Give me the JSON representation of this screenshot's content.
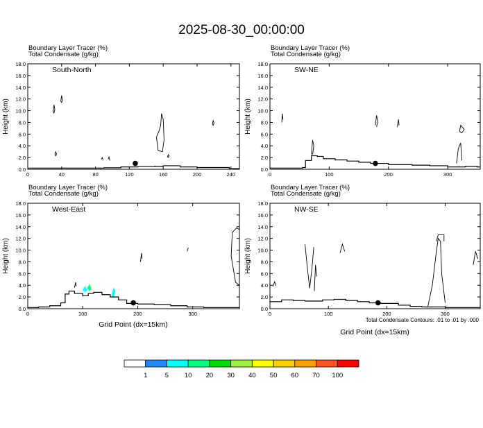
{
  "title": "2025-08-30_00:00:00",
  "panel_header": {
    "line1": "Boundary Layer Tracer   (%)",
    "line2": "Total Condensate   (g/kg)"
  },
  "footnote": "Total Condensate Contours: .01 to .01 by .000",
  "xlabel": "Grid Point (dx=15km)",
  "ylabel": "Height (km)",
  "colorbar": {
    "colors": [
      "#ffffff",
      "#1e8cff",
      "#00ffff",
      "#00ff80",
      "#00e000",
      "#a0f040",
      "#ffff00",
      "#ffd000",
      "#ffa000",
      "#ff5020",
      "#ff0000"
    ],
    "labels": [
      "1",
      "5",
      "10",
      "20",
      "30",
      "40",
      "50",
      "60",
      "70",
      "100"
    ]
  },
  "chart_data": [
    {
      "type": "contour-cross-section",
      "name": "South-North",
      "x_ticks": [
        0,
        40,
        80,
        120,
        160,
        200,
        240
      ],
      "xlim": [
        0,
        250
      ],
      "y_ticks": [
        "0.0",
        "2.0",
        "4.0",
        "6.0",
        "8.0",
        "10.0",
        "12.0",
        "14.0",
        "16.0",
        "18.0"
      ],
      "ylim": [
        0,
        18
      ],
      "marker": {
        "x": 127,
        "y": 1.0
      },
      "terrain": [
        [
          0,
          0.2
        ],
        [
          20,
          0.2
        ],
        [
          60,
          0.2
        ],
        [
          90,
          0.25
        ],
        [
          110,
          0.4
        ],
        [
          130,
          0.45
        ],
        [
          150,
          0.5
        ],
        [
          160,
          0.6
        ],
        [
          180,
          0.4
        ],
        [
          200,
          0.3
        ],
        [
          225,
          0.3
        ],
        [
          238,
          0.1
        ],
        [
          250,
          0.1
        ]
      ],
      "condensate_contours": [
        [
          [
            152,
            5.5
          ],
          [
            154,
            3.2
          ],
          [
            159,
            3.0
          ],
          [
            161,
            5.0
          ],
          [
            160,
            8.5
          ],
          [
            158,
            9.5
          ],
          [
            157,
            7.5
          ],
          [
            155,
            6.5
          ],
          [
            152,
            5.5
          ]
        ],
        [
          [
            30,
            9.8
          ],
          [
            31,
            11.0
          ],
          [
            32,
            10.2
          ],
          [
            31,
            9.6
          ],
          [
            30,
            9.8
          ]
        ],
        [
          [
            39,
            11.6
          ],
          [
            40,
            12.6
          ],
          [
            41,
            11.8
          ],
          [
            40,
            11.4
          ],
          [
            39,
            11.6
          ]
        ],
        [
          [
            32,
            2.5
          ],
          [
            33,
            3.0
          ],
          [
            34,
            2.6
          ],
          [
            33,
            2.3
          ],
          [
            32,
            2.5
          ]
        ],
        [
          [
            87,
            1.7
          ],
          [
            88,
            2.0
          ],
          [
            89,
            1.6
          ]
        ],
        [
          [
            95,
            1.7
          ],
          [
            96,
            2.1
          ],
          [
            97,
            1.5
          ]
        ],
        [
          [
            218,
            7.7
          ],
          [
            219,
            8.3
          ],
          [
            220,
            7.9
          ],
          [
            219,
            7.5
          ],
          [
            218,
            7.7
          ]
        ],
        [
          [
            165,
            2.1
          ],
          [
            166,
            2.5
          ],
          [
            167,
            2.3
          ],
          [
            166,
            2.0
          ],
          [
            165,
            2.1
          ]
        ]
      ],
      "tracer_fill": []
    },
    {
      "type": "contour-cross-section",
      "name": "SW-NE",
      "x_ticks": [
        0,
        100,
        200,
        300
      ],
      "xlim": [
        0,
        355
      ],
      "y_ticks": [
        "0.0",
        "2.0",
        "4.0",
        "6.0",
        "8.0",
        "10.0",
        "12.0",
        "14.0",
        "16.0",
        "18.0"
      ],
      "ylim": [
        0,
        18
      ],
      "marker": {
        "x": 178,
        "y": 1.0
      },
      "terrain": [
        [
          0,
          0.2
        ],
        [
          40,
          0.2
        ],
        [
          55,
          0.3
        ],
        [
          60,
          1.5
        ],
        [
          70,
          2.3
        ],
        [
          80,
          2.2
        ],
        [
          90,
          1.8
        ],
        [
          110,
          1.6
        ],
        [
          130,
          1.4
        ],
        [
          150,
          1.2
        ],
        [
          170,
          1.0
        ],
        [
          200,
          0.8
        ],
        [
          240,
          0.7
        ],
        [
          270,
          0.6
        ],
        [
          300,
          0.4
        ],
        [
          330,
          0.5
        ],
        [
          350,
          0.4
        ],
        [
          355,
          0.4
        ]
      ],
      "condensate_contours": [
        [
          [
            70,
            2.5
          ],
          [
            72,
            5.0
          ],
          [
            74,
            4.0
          ],
          [
            72,
            2.5
          ]
        ],
        [
          [
            20,
            8.0
          ],
          [
            21,
            9.5
          ],
          [
            22,
            8.5
          ]
        ],
        [
          [
            178,
            7.5
          ],
          [
            180,
            9.2
          ],
          [
            182,
            8.2
          ],
          [
            180,
            7.2
          ]
        ],
        [
          [
            215,
            7.2
          ],
          [
            217,
            8.5
          ],
          [
            218,
            7.5
          ]
        ],
        [
          [
            320,
            6.5
          ],
          [
            322,
            7.5
          ],
          [
            328,
            6.8
          ],
          [
            324,
            6.2
          ],
          [
            320,
            6.5
          ]
        ],
        [
          [
            315,
            1.0
          ],
          [
            318,
            3.5
          ],
          [
            322,
            4.5
          ],
          [
            324,
            1.5
          ]
        ]
      ],
      "tracer_fill": []
    },
    {
      "type": "contour-cross-section",
      "name": "West-East",
      "x_ticks": [
        0,
        100,
        200,
        300
      ],
      "xlim": [
        0,
        385
      ],
      "y_ticks": [
        "0.0",
        "2.0",
        "4.0",
        "6.0",
        "8.0",
        "10.0",
        "12.0",
        "14.0",
        "16.0",
        "18.0"
      ],
      "ylim": [
        0,
        18
      ],
      "marker": {
        "x": 192,
        "y": 1.0
      },
      "terrain": [
        [
          0,
          0.2
        ],
        [
          20,
          0.3
        ],
        [
          40,
          0.5
        ],
        [
          60,
          1.0
        ],
        [
          68,
          2.5
        ],
        [
          75,
          3.0
        ],
        [
          85,
          2.6
        ],
        [
          100,
          2.2
        ],
        [
          110,
          2.6
        ],
        [
          120,
          2.8
        ],
        [
          135,
          2.4
        ],
        [
          150,
          2.0
        ],
        [
          165,
          1.5
        ],
        [
          180,
          0.9
        ],
        [
          200,
          0.8
        ],
        [
          230,
          0.7
        ],
        [
          260,
          0.5
        ],
        [
          290,
          0.3
        ],
        [
          320,
          0.2
        ],
        [
          360,
          0.2
        ],
        [
          385,
          0.2
        ]
      ],
      "condensate_contours": [
        [
          [
            85,
            3.6
          ],
          [
            87,
            4.5
          ],
          [
            88,
            3.8
          ]
        ],
        [
          [
            385,
            4.0
          ],
          [
            378,
            4.5
          ],
          [
            370,
            9.0
          ],
          [
            372,
            13.0
          ],
          [
            380,
            13.8
          ],
          [
            385,
            13.5
          ]
        ],
        [
          [
            205,
            8.0
          ],
          [
            207,
            9.5
          ],
          [
            208,
            8.5
          ]
        ],
        [
          [
            290,
            9.8
          ],
          [
            292,
            10.4
          ]
        ]
      ],
      "tracer_fill": [
        {
          "value": 5,
          "points": [
            [
              100,
              3.2
            ],
            [
              104,
              3.9
            ],
            [
              108,
              3.2
            ],
            [
              104,
              2.8
            ]
          ]
        },
        {
          "value": 10,
          "points": [
            [
              108,
              3.5
            ],
            [
              112,
              4.2
            ],
            [
              116,
              3.4
            ],
            [
              112,
              3.0
            ]
          ]
        },
        {
          "value": 5,
          "points": [
            [
              152,
              2.2
            ],
            [
              156,
              3.6
            ],
            [
              160,
              3.0
            ],
            [
              156,
              2.0
            ]
          ]
        }
      ]
    },
    {
      "type": "contour-cross-section",
      "name": "NW-SE",
      "x_ticks": [
        0,
        100,
        200,
        300
      ],
      "xlim": [
        0,
        360
      ],
      "y_ticks": [
        "0.0",
        "2.0",
        "4.0",
        "6.0",
        "8.0",
        "10.0",
        "12.0",
        "14.0",
        "16.0",
        "18.0"
      ],
      "ylim": [
        0,
        18
      ],
      "marker": {
        "x": 185,
        "y": 1.0
      },
      "terrain": [
        [
          0,
          1.2
        ],
        [
          20,
          1.5
        ],
        [
          40,
          1.4
        ],
        [
          60,
          1.3
        ],
        [
          90,
          1.5
        ],
        [
          110,
          1.6
        ],
        [
          130,
          1.4
        ],
        [
          150,
          1.2
        ],
        [
          170,
          1.0
        ],
        [
          190,
          0.9
        ],
        [
          220,
          0.6
        ],
        [
          240,
          0.4
        ],
        [
          260,
          0.3
        ],
        [
          300,
          0.2
        ],
        [
          360,
          0.2
        ]
      ],
      "condensate_contours": [
        [
          [
            270,
            0.2
          ],
          [
            278,
            4.0
          ],
          [
            284,
            9.0
          ],
          [
            288,
            12.0
          ],
          [
            292,
            11.5
          ],
          [
            294,
            6.0
          ],
          [
            300,
            1.0
          ]
        ],
        [
          [
            60,
            11.0
          ],
          [
            64,
            7.0
          ],
          [
            68,
            3.5
          ],
          [
            72,
            7.0
          ],
          [
            75,
            10.5
          ]
        ],
        [
          [
            76,
            3.0
          ],
          [
            78,
            7.5
          ],
          [
            80,
            5.5
          ]
        ],
        [
          [
            120,
            9.5
          ],
          [
            124,
            11.0
          ],
          [
            128,
            9.8
          ]
        ],
        [
          [
            5,
            3.8
          ],
          [
            8,
            4.6
          ],
          [
            10,
            3.9
          ]
        ],
        [
          [
            285,
            11.5
          ],
          [
            288,
            12.6
          ],
          [
            298,
            12.6
          ],
          [
            298,
            11.5
          ]
        ],
        [
          [
            348,
            7.5
          ],
          [
            352,
            9.8
          ],
          [
            356,
            8.5
          ]
        ]
      ],
      "tracer_fill": []
    }
  ]
}
